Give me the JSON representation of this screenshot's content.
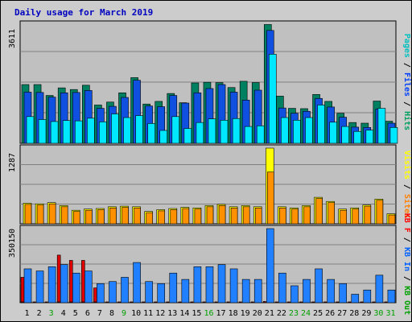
{
  "chart_data": {
    "type": "bar",
    "title": "Daily usage for March 2019",
    "categories": [
      "1",
      "2",
      "3",
      "4",
      "5",
      "6",
      "7",
      "8",
      "9",
      "10",
      "11",
      "12",
      "13",
      "14",
      "15",
      "16",
      "17",
      "18",
      "19",
      "20",
      "21",
      "22",
      "23",
      "24",
      "25",
      "26",
      "27",
      "28",
      "29",
      "30",
      "31"
    ],
    "weekend_days": [
      "3",
      "9",
      "16",
      "23",
      "24",
      "30",
      "31"
    ],
    "panels": [
      {
        "name": "hits-files-pages",
        "ymax_label": "3611",
        "ymax": 3611,
        "legend": [
          {
            "text": "Pages",
            "color": "#00c0c0"
          },
          {
            "text": " / ",
            "color": "#000000"
          },
          {
            "text": "Files",
            "color": "#0040ff"
          },
          {
            "text": " / ",
            "color": "#000000"
          },
          {
            "text": "Hits",
            "color": "#00a060"
          }
        ],
        "series": [
          {
            "name": "Hits",
            "color": "#008060",
            "values": [
              1780,
              1780,
              1450,
              1680,
              1630,
              1760,
              1160,
              1250,
              1530,
              1990,
              1190,
              1270,
              1510,
              1230,
              1830,
              1850,
              1840,
              1690,
              1880,
              1840,
              3600,
              1430,
              1060,
              1050,
              1480,
              1270,
              910,
              630,
              610,
              1280,
              670
            ]
          },
          {
            "name": "Files",
            "color": "#1050e0",
            "values": [
              1550,
              1540,
              1400,
              1530,
              1540,
              1600,
              1060,
              1120,
              1390,
              1910,
              1130,
              1110,
              1450,
              1220,
              1530,
              1660,
              1780,
              1550,
              1310,
              1610,
              3420,
              1070,
              910,
              970,
              1360,
              1100,
              790,
              490,
              480,
              1040,
              610
            ]
          },
          {
            "name": "Pages",
            "color": "#00e8ff",
            "values": [
              810,
              720,
              660,
              690,
              680,
              760,
              650,
              890,
              780,
              840,
              600,
              390,
              810,
              450,
              630,
              740,
              700,
              750,
              510,
              530,
              2700,
              780,
              700,
              780,
              1160,
              640,
              510,
              360,
              400,
              1060,
              480
            ]
          }
        ]
      },
      {
        "name": "visits-sites",
        "ymax_label": "1287",
        "ymax": 1287,
        "legend": [
          {
            "text": "Visits",
            "color": "#ffff00"
          },
          {
            "text": " / ",
            "color": "#000000"
          },
          {
            "text": "Sites",
            "color": "#ff8000"
          }
        ],
        "series": [
          {
            "name": "Visits",
            "color": "#ffff00",
            "values": [
              350,
              340,
              360,
              310,
              230,
              250,
              260,
              290,
              300,
              290,
              210,
              240,
              260,
              280,
              270,
              310,
              330,
              290,
              310,
              290,
              1287,
              290,
              270,
              310,
              450,
              380,
              250,
              270,
              320,
              420,
              170
            ]
          },
          {
            "name": "Sites",
            "color": "#ff9000",
            "values": [
              330,
              320,
              340,
              290,
              210,
              230,
              240,
              270,
              280,
              270,
              190,
              220,
              240,
              260,
              250,
              290,
              310,
              270,
              290,
              270,
              880,
              270,
              250,
              290,
              430,
              360,
              230,
              250,
              300,
              400,
              150
            ]
          }
        ]
      },
      {
        "name": "kbytes",
        "ymax_label": "350150",
        "ymax": 350150,
        "legend": [
          {
            "text": "KB F",
            "color": "#ff0000"
          },
          {
            "text": " / ",
            "color": "#000000"
          },
          {
            "text": "KB In",
            "color": "#0060ff"
          },
          {
            "text": " / ",
            "color": "#000000"
          },
          {
            "text": "KB Out",
            "color": "#00a000"
          }
        ],
        "series": [
          {
            "name": "KB F",
            "color": "#e00000",
            "values": [
              120000,
              0,
              0,
              225000,
              200000,
              200000,
              70000,
              0,
              0,
              0,
              0,
              0,
              0,
              0,
              0,
              0,
              0,
              0,
              0,
              0,
              0,
              0,
              0,
              0,
              0,
              0,
              0,
              0,
              0,
              0,
              0
            ]
          },
          {
            "name": "KB In",
            "color": "#2080ff",
            "values": [
              160000,
              150000,
              170000,
              180000,
              140000,
              150000,
              90000,
              100000,
              120000,
              190000,
              100000,
              90000,
              140000,
              110000,
              170000,
              170000,
              180000,
              160000,
              110000,
              110000,
              350150,
              140000,
              80000,
              110000,
              160000,
              110000,
              90000,
              40000,
              60000,
              130000,
              60000
            ]
          },
          {
            "name": "KB Out",
            "color": "#800000",
            "values": [
              4000,
              4000,
              4000,
              4000,
              4000,
              4000,
              4000,
              4000,
              4000,
              4000,
              4000,
              4000,
              4000,
              4000,
              4000,
              4000,
              4000,
              4000,
              4000,
              4000,
              6000,
              4000,
              4000,
              4000,
              4000,
              4000,
              4000,
              4000,
              4000,
              4000,
              4000
            ]
          }
        ]
      }
    ]
  }
}
